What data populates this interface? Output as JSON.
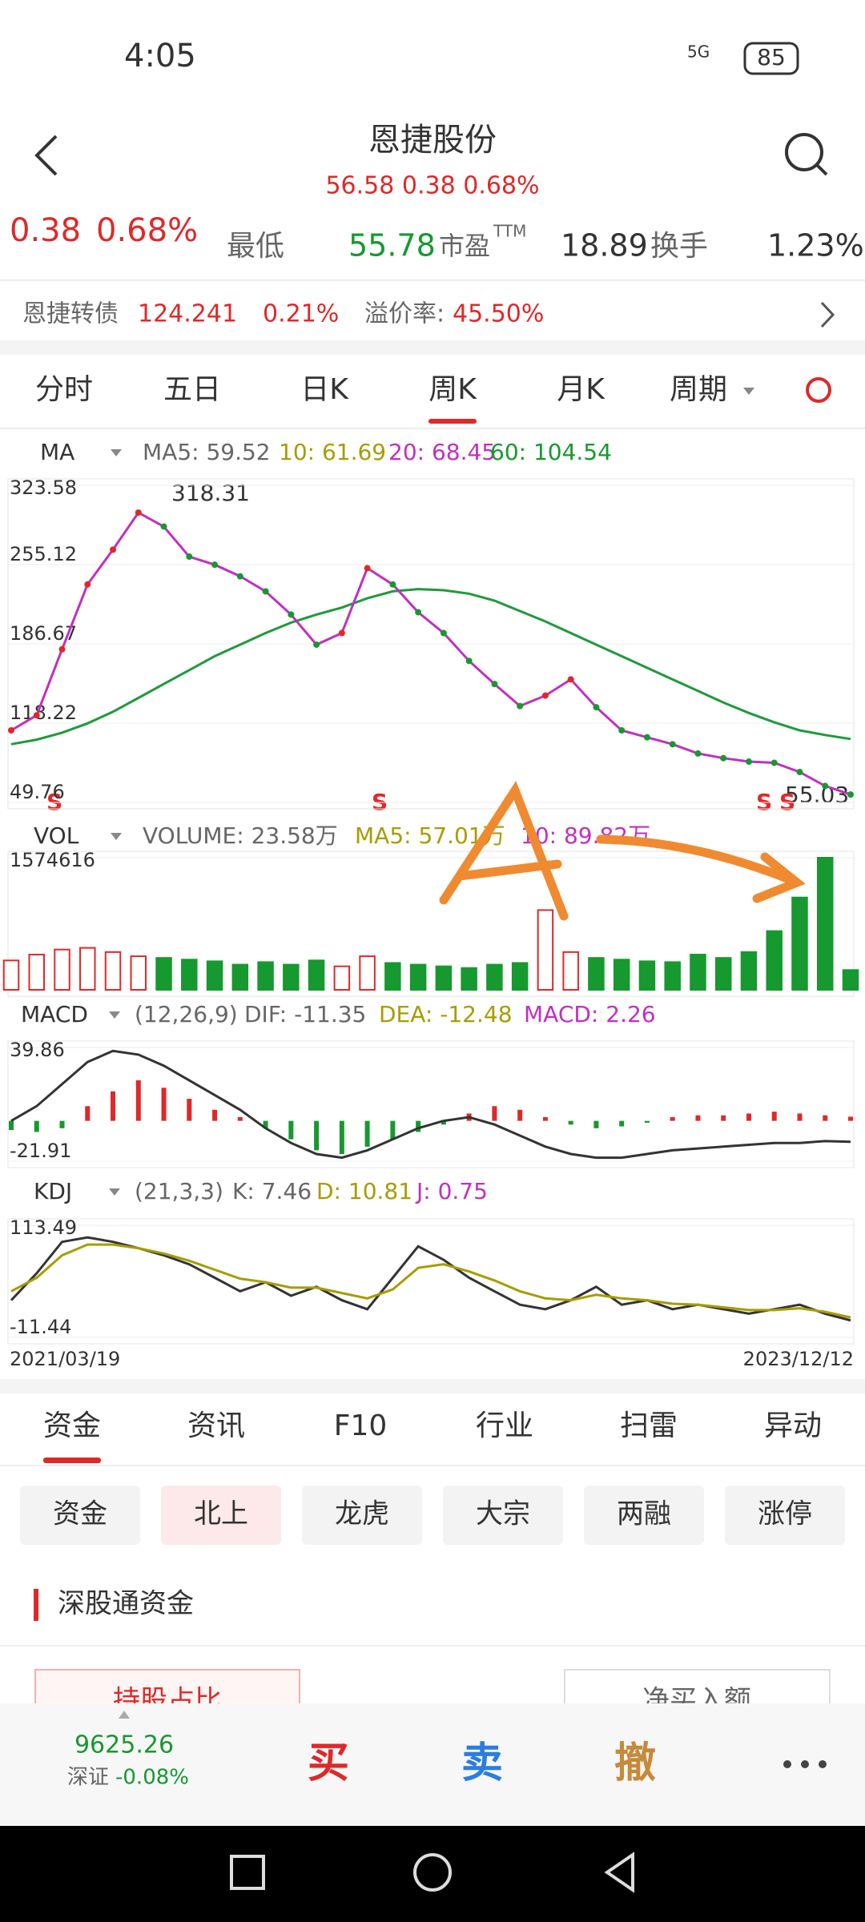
{
  "status_bar": {
    "time": "4:05",
    "network": "5G",
    "battery": "85"
  },
  "header": {
    "title": "恩捷股份",
    "subtitle": "56.58 0.38 0.68%"
  },
  "quote": {
    "change": "0.38",
    "change_pct": "0.68%",
    "low_label": "最低",
    "low": "55.78",
    "pe_label": "市盈",
    "pe_sup": "TTM",
    "pe": "18.89",
    "turnover_label": "换手",
    "turnover": "1.23%"
  },
  "bond": {
    "name": "恩捷转债",
    "price": "124.241",
    "change": "0.21%",
    "premium_label": "溢价率:",
    "premium": "45.50%"
  },
  "period_tabs": [
    "分时",
    "五日",
    "日K",
    "周K",
    "月K",
    "周期"
  ],
  "price_chart": {
    "legend": {
      "name": "MA",
      "items": [
        "MA5: 59.52",
        "10: 61.69",
        "20: 68.45",
        "60: 104.54"
      ]
    },
    "ylim": [
      49.76,
      323.58
    ],
    "yticks": [
      323.58,
      255.12,
      186.67,
      118.22,
      49.76
    ],
    "high_label": "318.31",
    "low_label": "55.03",
    "signals": [
      "S",
      "S",
      "S",
      "S"
    ],
    "close": [
      112,
      125,
      182,
      238,
      268,
      300,
      288,
      262,
      255,
      245,
      232,
      212,
      186,
      196,
      252,
      238,
      214,
      196,
      172,
      152,
      133,
      142,
      156,
      132,
      112,
      106,
      100,
      92,
      88,
      85,
      84,
      76,
      64,
      56.58
    ],
    "ma60": [
      100,
      104,
      110,
      118,
      128,
      140,
      152,
      164,
      176,
      186,
      196,
      205,
      212,
      218,
      226,
      232,
      234,
      233,
      230,
      224,
      215,
      206,
      196,
      186,
      176,
      166,
      156,
      146,
      136,
      127,
      119,
      112,
      108,
      104.54
    ]
  },
  "volume_chart": {
    "legend": {
      "name": "VOL",
      "items": [
        "VOLUME: 23.58万",
        "MA5: 57.01万",
        "10: 89.82万"
      ]
    },
    "ylim": [
      0,
      1574616
    ],
    "yticks": [
      1574616
    ],
    "values": [
      350000,
      420000,
      480000,
      500000,
      450000,
      400000,
      380000,
      360000,
      340000,
      300000,
      330000,
      300000,
      350000,
      280000,
      400000,
      320000,
      300000,
      280000,
      260000,
      300000,
      320000,
      950000,
      450000,
      380000,
      360000,
      340000,
      330000,
      420000,
      380000,
      450000,
      700000,
      1100000,
      1574616,
      235800
    ]
  },
  "macd_chart": {
    "legend": {
      "name": "MACD",
      "params": "(12,26,9)",
      "items": [
        "DIF: -11.35",
        "DEA: -12.48",
        "MACD: 2.26"
      ]
    },
    "ylim": [
      -21.91,
      39.86
    ],
    "yticks": [
      39.86,
      -21.91
    ],
    "histogram": [
      -5,
      -6,
      -4,
      8,
      16,
      22,
      18,
      12,
      6,
      2,
      -4,
      -10,
      -16,
      -18,
      -14,
      -10,
      -6,
      -2,
      4,
      8,
      6,
      2,
      -2,
      -4,
      -3,
      -1,
      2,
      3,
      3,
      4,
      5,
      4,
      3,
      2.26
    ],
    "dif": [
      0,
      8,
      20,
      32,
      38,
      36,
      30,
      22,
      14,
      6,
      -4,
      -12,
      -18,
      -20,
      -16,
      -10,
      -4,
      0,
      2,
      -2,
      -8,
      -14,
      -18,
      -20,
      -20,
      -18,
      -16,
      -15,
      -14,
      -13,
      -12,
      -12,
      -11,
      -11.35
    ]
  },
  "kdj_chart": {
    "legend": {
      "name": "KDJ",
      "params": "(21,3,3)",
      "items": [
        "K: 7.46",
        "D: 10.81",
        "J: 0.75"
      ]
    },
    "ylim": [
      -11.44,
      113.49
    ],
    "yticks": [
      113.49,
      -11.44
    ],
    "k": [
      30,
      60,
      95,
      100,
      95,
      88,
      80,
      70,
      55,
      40,
      50,
      35,
      45,
      30,
      20,
      55,
      90,
      75,
      55,
      40,
      25,
      20,
      30,
      45,
      25,
      30,
      20,
      25,
      20,
      15,
      20,
      25,
      15,
      7.46
    ],
    "d": [
      40,
      55,
      80,
      92,
      92,
      88,
      82,
      74,
      64,
      54,
      50,
      44,
      44,
      38,
      32,
      42,
      66,
      70,
      62,
      52,
      40,
      32,
      30,
      36,
      32,
      30,
      26,
      25,
      22,
      19,
      19,
      21,
      17,
      10.81
    ]
  },
  "date_range": [
    "2021/03/19",
    "2023/12/12"
  ],
  "info_tabs": [
    "资金",
    "资讯",
    "F10",
    "行业",
    "扫雷",
    "异动"
  ],
  "sub_tabs": [
    "资金",
    "北上",
    "龙虎",
    "大宗",
    "两融",
    "涨停"
  ],
  "section_title": "深股通资金",
  "cards": [
    "持股占比",
    "净买入额"
  ],
  "index": {
    "value": "9625.26",
    "name": "深证",
    "change": "-0.08%"
  },
  "actions": [
    "买",
    "卖",
    "撤"
  ]
}
